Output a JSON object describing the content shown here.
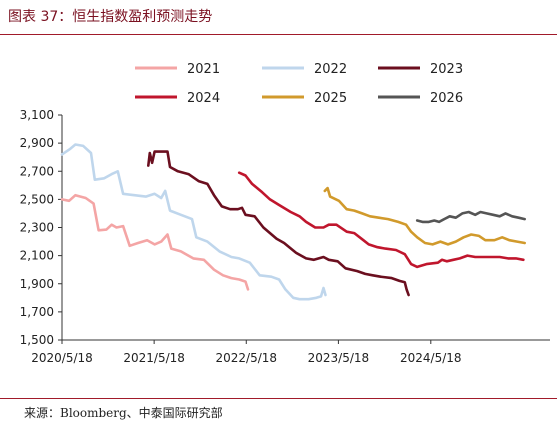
{
  "figure": {
    "title": "图表 37：恒生指数盈利预测走势",
    "source": "来源：Bloomberg、中泰国际研究部"
  },
  "chart_data": {
    "type": "line",
    "title": "",
    "xlabel": "",
    "ylabel": "",
    "ylim": [
      1500,
      3100
    ],
    "yticks": [
      1500,
      1700,
      1900,
      2100,
      2300,
      2500,
      2700,
      2900,
      3100
    ],
    "ytick_labels": [
      "1,500",
      "1,700",
      "1,900",
      "2,100",
      "2,300",
      "2,500",
      "2,700",
      "2,900",
      "3,100"
    ],
    "xlim": [
      "2020-05-18",
      "2025-06-15"
    ],
    "xticks": [
      "2020-05-18",
      "2021-05-18",
      "2022-05-18",
      "2023-05-18",
      "2024-05-18"
    ],
    "xtick_labels": [
      "2020/5/18",
      "2021/5/18",
      "2022/5/18",
      "2023/5/18",
      "2024/5/18"
    ],
    "grid": false,
    "legend_position": "top",
    "series": [
      {
        "name": "2021",
        "color": "#f4a5a5",
        "points": [
          [
            "2020-05-18",
            2500
          ],
          [
            "2020-06-15",
            2490
          ],
          [
            "2020-07-10",
            2530
          ],
          [
            "2020-08-20",
            2510
          ],
          [
            "2020-09-20",
            2470
          ],
          [
            "2020-10-10",
            2280
          ],
          [
            "2020-11-10",
            2285
          ],
          [
            "2020-12-01",
            2320
          ],
          [
            "2020-12-20",
            2300
          ],
          [
            "2021-01-15",
            2310
          ],
          [
            "2021-02-10",
            2170
          ],
          [
            "2021-03-15",
            2190
          ],
          [
            "2021-04-20",
            2210
          ],
          [
            "2021-05-20",
            2180
          ],
          [
            "2021-06-15",
            2200
          ],
          [
            "2021-07-10",
            2250
          ],
          [
            "2021-07-25",
            2150
          ],
          [
            "2021-09-01",
            2130
          ],
          [
            "2021-10-20",
            2080
          ],
          [
            "2021-12-01",
            2070
          ],
          [
            "2022-01-10",
            2000
          ],
          [
            "2022-02-15",
            1960
          ],
          [
            "2022-03-20",
            1940
          ],
          [
            "2022-04-20",
            1930
          ],
          [
            "2022-05-15",
            1915
          ],
          [
            "2022-05-25",
            1860
          ]
        ]
      },
      {
        "name": "2022",
        "color": "#bfd6ec",
        "points": [
          [
            "2020-05-18",
            2820
          ],
          [
            "2020-06-20",
            2860
          ],
          [
            "2020-07-10",
            2890
          ],
          [
            "2020-08-10",
            2880
          ],
          [
            "2020-09-10",
            2830
          ],
          [
            "2020-09-25",
            2640
          ],
          [
            "2020-11-01",
            2650
          ],
          [
            "2020-12-01",
            2680
          ],
          [
            "2020-12-25",
            2700
          ],
          [
            "2021-01-15",
            2540
          ],
          [
            "2021-03-01",
            2530
          ],
          [
            "2021-04-15",
            2520
          ],
          [
            "2021-05-20",
            2540
          ],
          [
            "2021-06-15",
            2510
          ],
          [
            "2021-07-01",
            2560
          ],
          [
            "2021-07-20",
            2420
          ],
          [
            "2021-09-01",
            2390
          ],
          [
            "2021-10-15",
            2360
          ],
          [
            "2021-11-01",
            2230
          ],
          [
            "2021-12-15",
            2200
          ],
          [
            "2022-02-01",
            2130
          ],
          [
            "2022-03-20",
            2090
          ],
          [
            "2022-04-20",
            2080
          ],
          [
            "2022-06-01",
            2050
          ],
          [
            "2022-07-10",
            1960
          ],
          [
            "2022-08-25",
            1950
          ],
          [
            "2022-09-25",
            1930
          ],
          [
            "2022-10-20",
            1860
          ],
          [
            "2022-11-20",
            1800
          ],
          [
            "2022-12-15",
            1790
          ],
          [
            "2023-01-20",
            1790
          ],
          [
            "2023-02-20",
            1800
          ],
          [
            "2023-03-10",
            1810
          ],
          [
            "2023-03-20",
            1870
          ],
          [
            "2023-03-28",
            1820
          ]
        ]
      },
      {
        "name": "2023",
        "color": "#6b0f1f",
        "points": [
          [
            "2021-04-25",
            2740
          ],
          [
            "2021-05-01",
            2830
          ],
          [
            "2021-05-10",
            2760
          ],
          [
            "2021-05-20",
            2840
          ],
          [
            "2021-06-20",
            2840
          ],
          [
            "2021-07-10",
            2840
          ],
          [
            "2021-07-20",
            2730
          ],
          [
            "2021-08-20",
            2700
          ],
          [
            "2021-10-01",
            2680
          ],
          [
            "2021-11-10",
            2630
          ],
          [
            "2021-12-15",
            2610
          ],
          [
            "2022-01-10",
            2530
          ],
          [
            "2022-02-10",
            2450
          ],
          [
            "2022-03-15",
            2430
          ],
          [
            "2022-04-15",
            2430
          ],
          [
            "2022-05-01",
            2440
          ],
          [
            "2022-05-15",
            2390
          ],
          [
            "2022-06-20",
            2380
          ],
          [
            "2022-07-25",
            2300
          ],
          [
            "2022-09-15",
            2220
          ],
          [
            "2022-10-15",
            2190
          ],
          [
            "2022-12-01",
            2120
          ],
          [
            "2023-01-10",
            2080
          ],
          [
            "2023-02-10",
            2070
          ],
          [
            "2023-03-20",
            2090
          ],
          [
            "2023-04-10",
            2070
          ],
          [
            "2023-05-15",
            2060
          ],
          [
            "2023-06-15",
            2010
          ],
          [
            "2023-08-01",
            1990
          ],
          [
            "2023-09-01",
            1970
          ],
          [
            "2023-10-01",
            1960
          ],
          [
            "2023-11-01",
            1950
          ],
          [
            "2023-12-15",
            1940
          ],
          [
            "2024-01-15",
            1920
          ],
          [
            "2024-02-05",
            1910
          ],
          [
            "2024-02-12",
            1860
          ],
          [
            "2024-02-20",
            1820
          ]
        ]
      },
      {
        "name": "2024",
        "color": "#c0162d",
        "points": [
          [
            "2022-04-20",
            2690
          ],
          [
            "2022-05-15",
            2670
          ],
          [
            "2022-06-10",
            2610
          ],
          [
            "2022-07-20",
            2550
          ],
          [
            "2022-08-20",
            2500
          ],
          [
            "2022-09-25",
            2460
          ],
          [
            "2022-11-10",
            2410
          ],
          [
            "2022-12-15",
            2380
          ],
          [
            "2023-01-10",
            2340
          ],
          [
            "2023-02-15",
            2300
          ],
          [
            "2023-03-20",
            2300
          ],
          [
            "2023-04-10",
            2320
          ],
          [
            "2023-05-10",
            2320
          ],
          [
            "2023-06-20",
            2270
          ],
          [
            "2023-07-20",
            2260
          ],
          [
            "2023-08-25",
            2210
          ],
          [
            "2023-09-15",
            2180
          ],
          [
            "2023-10-20",
            2160
          ],
          [
            "2023-11-20",
            2150
          ],
          [
            "2024-01-01",
            2140
          ],
          [
            "2024-02-05",
            2110
          ],
          [
            "2024-03-01",
            2040
          ],
          [
            "2024-03-25",
            2020
          ],
          [
            "2024-05-01",
            2040
          ],
          [
            "2024-06-15",
            2050
          ],
          [
            "2024-07-01",
            2070
          ],
          [
            "2024-07-20",
            2060
          ],
          [
            "2024-08-15",
            2070
          ],
          [
            "2024-09-10",
            2080
          ],
          [
            "2024-10-10",
            2100
          ],
          [
            "2024-11-10",
            2090
          ],
          [
            "2024-12-10",
            2090
          ],
          [
            "2025-01-10",
            2090
          ],
          [
            "2025-02-15",
            2090
          ],
          [
            "2025-03-20",
            2080
          ],
          [
            "2025-04-20",
            2080
          ],
          [
            "2025-05-20",
            2070
          ]
        ]
      },
      {
        "name": "2025",
        "color": "#d19a2c",
        "points": [
          [
            "2023-03-25",
            2560
          ],
          [
            "2023-04-05",
            2580
          ],
          [
            "2023-04-15",
            2520
          ],
          [
            "2023-05-20",
            2490
          ],
          [
            "2023-06-20",
            2430
          ],
          [
            "2023-07-20",
            2420
          ],
          [
            "2023-08-20",
            2400
          ],
          [
            "2023-09-20",
            2380
          ],
          [
            "2023-10-25",
            2370
          ],
          [
            "2023-12-01",
            2360
          ],
          [
            "2024-01-10",
            2340
          ],
          [
            "2024-02-10",
            2320
          ],
          [
            "2024-03-01",
            2270
          ],
          [
            "2024-03-25",
            2230
          ],
          [
            "2024-04-25",
            2190
          ],
          [
            "2024-05-25",
            2180
          ],
          [
            "2024-06-25",
            2200
          ],
          [
            "2024-07-25",
            2180
          ],
          [
            "2024-08-25",
            2200
          ],
          [
            "2024-09-25",
            2230
          ],
          [
            "2024-10-25",
            2250
          ],
          [
            "2024-11-25",
            2240
          ],
          [
            "2024-12-20",
            2210
          ],
          [
            "2025-01-25",
            2210
          ],
          [
            "2025-02-25",
            2230
          ],
          [
            "2025-03-25",
            2210
          ],
          [
            "2025-04-25",
            2200
          ],
          [
            "2025-05-25",
            2190
          ]
        ]
      },
      {
        "name": "2026",
        "color": "#555555",
        "points": [
          [
            "2024-03-25",
            2350
          ],
          [
            "2024-04-15",
            2340
          ],
          [
            "2024-05-10",
            2340
          ],
          [
            "2024-06-01",
            2350
          ],
          [
            "2024-06-20",
            2340
          ],
          [
            "2024-07-10",
            2360
          ],
          [
            "2024-08-01",
            2380
          ],
          [
            "2024-08-25",
            2370
          ],
          [
            "2024-09-20",
            2400
          ],
          [
            "2024-10-15",
            2410
          ],
          [
            "2024-11-10",
            2390
          ],
          [
            "2024-12-01",
            2410
          ],
          [
            "2024-12-25",
            2400
          ],
          [
            "2025-01-20",
            2390
          ],
          [
            "2025-02-15",
            2380
          ],
          [
            "2025-03-10",
            2400
          ],
          [
            "2025-04-05",
            2380
          ],
          [
            "2025-05-01",
            2370
          ],
          [
            "2025-05-25",
            2360
          ]
        ]
      }
    ]
  }
}
